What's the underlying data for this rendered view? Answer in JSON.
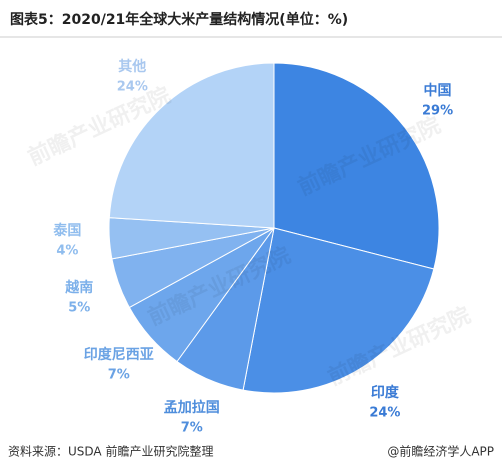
{
  "chart_data": {
    "type": "pie",
    "title": "图表5：2020/21年全球大米产量结构情况(单位：%)",
    "categories": [
      "中国",
      "印度",
      "孟加拉国",
      "印度尼西亚",
      "越南",
      "泰国",
      "其他"
    ],
    "values": [
      29,
      24,
      7,
      7,
      5,
      4,
      24
    ],
    "value_labels": [
      "29%",
      "24%",
      "7%",
      "7%",
      "5%",
      "4%",
      "24%"
    ],
    "colors": [
      "#3d85e2",
      "#4b8fe6",
      "#5c9ae9",
      "#6da6ec",
      "#80b2ef",
      "#95c0f2",
      "#b3d3f7"
    ],
    "label_colors": [
      "#3a7bd5",
      "#3a7bd5",
      "#4f8edc",
      "#6aa2e4",
      "#7cb0ea",
      "#90bdee",
      "#a9c8ef"
    ],
    "source": "资料来源：USDA 前瞻产业研究院整理",
    "credit": "@前瞻经济学人APP",
    "watermark": "前瞻产业研究院"
  }
}
